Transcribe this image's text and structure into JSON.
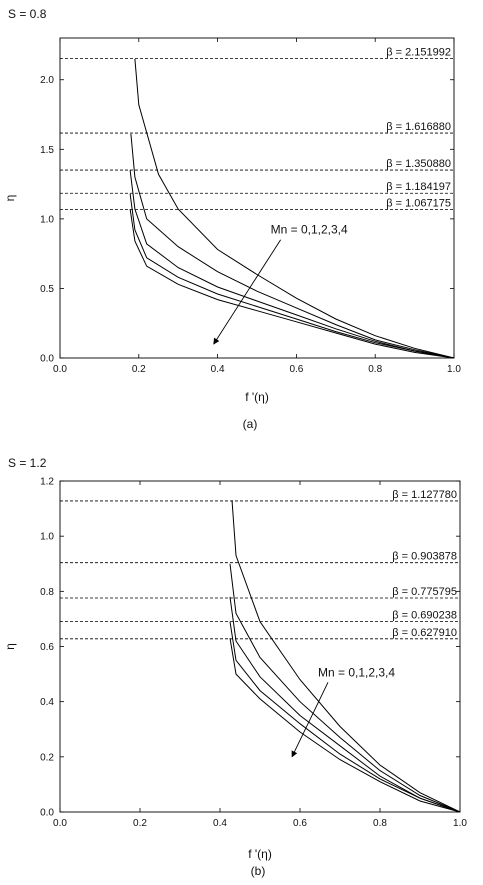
{
  "figure": {
    "panels": [
      {
        "sub_label": "(a)",
        "param": "S = 0.8",
        "annotation": "Mn = 0,1,2,3,4",
        "x_label": "f '(η)",
        "y_label": "η"
      },
      {
        "sub_label": "(b)",
        "param": "S = 1.2",
        "annotation": "Mn = 0,1,2,3,4",
        "x_label": "f '(η)",
        "y_label": "η"
      }
    ]
  },
  "chart_data": [
    {
      "type": "line",
      "title": "S = 0.8",
      "xlabel": "f '(η)",
      "ylabel": "η",
      "xlim": [
        0.0,
        1.0
      ],
      "ylim": [
        0.0,
        2.3
      ],
      "x_ticks": [
        "0.0",
        "0.2",
        "0.4",
        "0.6",
        "0.8",
        "1.0"
      ],
      "y_ticks": [
        "0.0",
        "0.5",
        "1.0",
        "1.5",
        "2.0"
      ],
      "x_tick_values": [
        0,
        0.2,
        0.4,
        0.6,
        0.8,
        1.0
      ],
      "y_tick_values": [
        0,
        0.5,
        1.0,
        1.5,
        2.0
      ],
      "annotation": "Mn = 0,1,2,3,4",
      "reference_lines": [
        {
          "label": "β = 2.151992",
          "y": 2.151992
        },
        {
          "label": "β = 1.616880",
          "y": 1.61688
        },
        {
          "label": "β = 1.350880",
          "y": 1.35088
        },
        {
          "label": "β = 1.184197",
          "y": 1.184197
        },
        {
          "label": "β = 1.067175",
          "y": 1.067175
        }
      ],
      "series": [
        {
          "values_x": [
            0.19,
            0.2,
            0.25,
            0.3,
            0.4,
            0.5,
            0.6,
            0.7,
            0.8,
            0.9,
            1.0
          ],
          "values_y": [
            2.15,
            1.82,
            1.32,
            1.07,
            0.78,
            0.6,
            0.43,
            0.28,
            0.16,
            0.07,
            0.0
          ]
        },
        {
          "values_x": [
            0.18,
            0.19,
            0.22,
            0.3,
            0.4,
            0.5,
            0.6,
            0.7,
            0.8,
            0.9,
            1.0
          ],
          "values_y": [
            1.61,
            1.3,
            1.0,
            0.8,
            0.62,
            0.48,
            0.36,
            0.24,
            0.13,
            0.06,
            0.0
          ]
        },
        {
          "values_x": [
            0.178,
            0.19,
            0.22,
            0.3,
            0.4,
            0.5,
            0.6,
            0.7,
            0.8,
            0.9,
            1.0
          ],
          "values_y": [
            1.35,
            1.07,
            0.82,
            0.65,
            0.51,
            0.41,
            0.31,
            0.21,
            0.12,
            0.05,
            0.0
          ]
        },
        {
          "values_x": [
            0.178,
            0.19,
            0.22,
            0.3,
            0.4,
            0.5,
            0.6,
            0.7,
            0.8,
            0.9,
            1.0
          ],
          "values_y": [
            1.18,
            0.92,
            0.72,
            0.58,
            0.46,
            0.37,
            0.28,
            0.19,
            0.11,
            0.05,
            0.0
          ]
        },
        {
          "values_x": [
            0.178,
            0.19,
            0.22,
            0.3,
            0.4,
            0.5,
            0.6,
            0.7,
            0.8,
            0.9,
            1.0
          ],
          "values_y": [
            1.07,
            0.84,
            0.66,
            0.53,
            0.42,
            0.34,
            0.26,
            0.18,
            0.1,
            0.04,
            0.0
          ]
        }
      ],
      "arrow": {
        "from": [
          0.56,
          0.85
        ],
        "to": [
          0.39,
          0.1
        ]
      }
    },
    {
      "type": "line",
      "title": "S = 1.2",
      "xlabel": "f '(η)",
      "ylabel": "η",
      "xlim": [
        0.0,
        1.0
      ],
      "ylim": [
        0.0,
        1.2
      ],
      "x_ticks": [
        "0.0",
        "0.2",
        "0.4",
        "0.6",
        "0.8",
        "1.0"
      ],
      "y_ticks": [
        "0.0",
        "0.2",
        "0.4",
        "0.6",
        "0.8",
        "1.0",
        "1.2"
      ],
      "x_tick_values": [
        0,
        0.2,
        0.4,
        0.6,
        0.8,
        1.0
      ],
      "y_tick_values": [
        0,
        0.2,
        0.4,
        0.6,
        0.8,
        1.0,
        1.2
      ],
      "annotation": "Mn = 0,1,2,3,4",
      "reference_lines": [
        {
          "label": "β = 1.127780",
          "y": 1.12778
        },
        {
          "label": "β = 0.903878",
          "y": 0.903878
        },
        {
          "label": "β = 0.775795",
          "y": 0.775795
        },
        {
          "label": "β = 0.690238",
          "y": 0.690238
        },
        {
          "label": "β = 0.627910",
          "y": 0.62791
        }
      ],
      "series": [
        {
          "values_x": [
            0.43,
            0.44,
            0.5,
            0.6,
            0.7,
            0.8,
            0.9,
            1.0
          ],
          "values_y": [
            1.13,
            0.93,
            0.69,
            0.48,
            0.31,
            0.17,
            0.07,
            0.0
          ]
        },
        {
          "values_x": [
            0.425,
            0.44,
            0.5,
            0.6,
            0.7,
            0.8,
            0.9,
            1.0
          ],
          "values_y": [
            0.9,
            0.72,
            0.56,
            0.4,
            0.27,
            0.15,
            0.06,
            0.0
          ]
        },
        {
          "values_x": [
            0.425,
            0.44,
            0.5,
            0.6,
            0.7,
            0.8,
            0.9,
            1.0
          ],
          "values_y": [
            0.78,
            0.62,
            0.49,
            0.35,
            0.24,
            0.13,
            0.05,
            0.0
          ]
        },
        {
          "values_x": [
            0.425,
            0.44,
            0.5,
            0.6,
            0.7,
            0.8,
            0.9,
            1.0
          ],
          "values_y": [
            0.69,
            0.55,
            0.44,
            0.32,
            0.21,
            0.12,
            0.05,
            0.0
          ]
        },
        {
          "values_x": [
            0.425,
            0.44,
            0.5,
            0.6,
            0.7,
            0.8,
            0.9,
            1.0
          ],
          "values_y": [
            0.63,
            0.5,
            0.41,
            0.29,
            0.19,
            0.11,
            0.04,
            0.0
          ]
        }
      ],
      "arrow": {
        "from": [
          0.67,
          0.47
        ],
        "to": [
          0.58,
          0.2
        ]
      }
    }
  ]
}
